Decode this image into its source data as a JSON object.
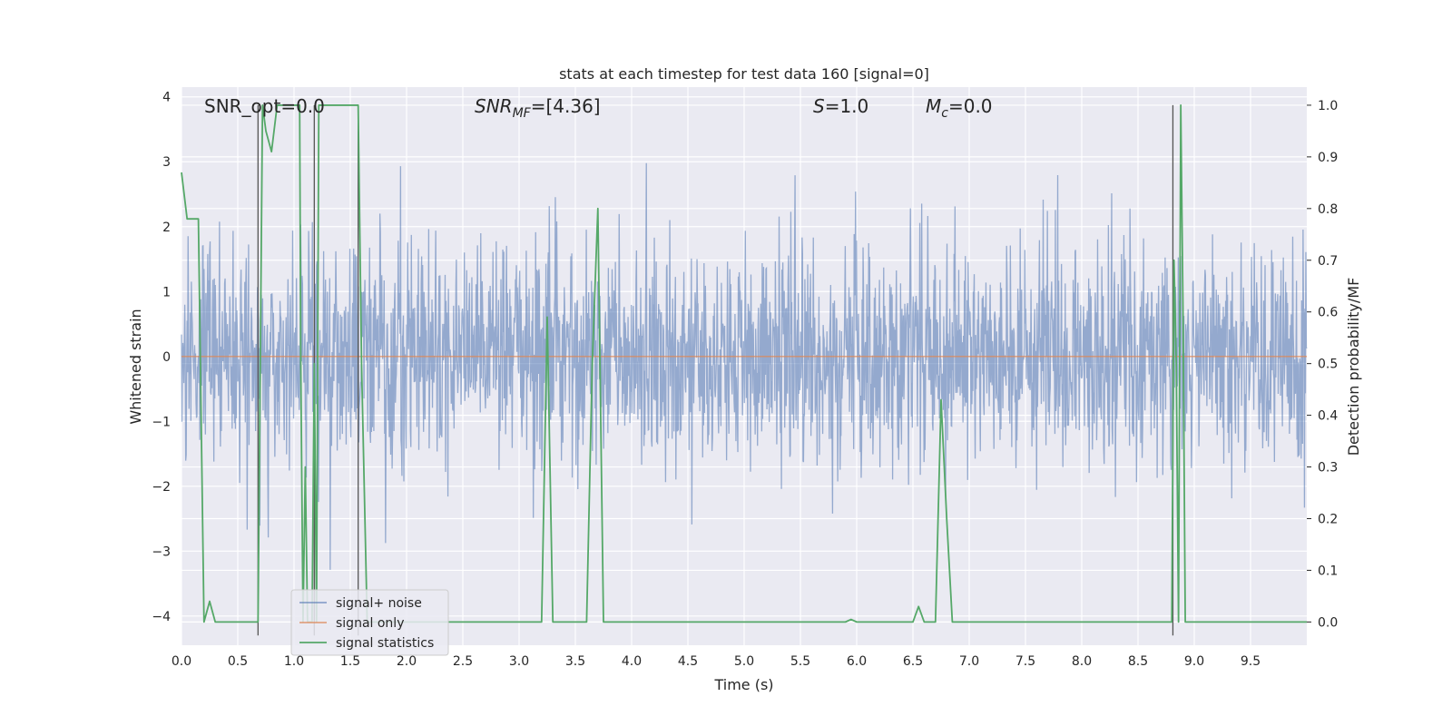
{
  "chart_data": {
    "type": "line",
    "title": "stats at each timestep for test data 160 [signal=0]",
    "xlabel": "Time (s)",
    "ylabel": "Whitened strain",
    "y2label": "Detection probability/MF",
    "xlim": [
      0.0,
      10.0
    ],
    "ylim": [
      -4.45,
      4.15
    ],
    "y2lim": [
      -0.045,
      1.035
    ],
    "x_ticks": [
      "0.0",
      "0.5",
      "1.0",
      "1.5",
      "2.0",
      "2.5",
      "3.0",
      "3.5",
      "4.0",
      "4.5",
      "5.0",
      "5.5",
      "6.0",
      "6.5",
      "7.0",
      "7.5",
      "8.0",
      "8.5",
      "9.0",
      "9.5"
    ],
    "y_ticks": [
      "4",
      "3",
      "2",
      "1",
      "0",
      "−1",
      "−2",
      "−3",
      "−4"
    ],
    "y2_ticks": [
      "1.0",
      "0.9",
      "0.8",
      "0.7",
      "0.6",
      "0.5",
      "0.4",
      "0.3",
      "0.2",
      "0.1",
      "0.0"
    ],
    "grid": true,
    "legend_position": "lower-left",
    "annotations": {
      "snr_opt": "SNR_opt=0.0",
      "snr_mf_sym": "SNR",
      "snr_mf_sub": "MF",
      "snr_mf_val": "=[4.36]",
      "s_sym": "S",
      "s_val": "=1.0",
      "mc_sym": "M",
      "mc_sub": "c",
      "mc_val": "=0.0"
    },
    "series": [
      {
        "name": "signal+ noise",
        "color": "#4c72b0",
        "style": "gaussian-noise",
        "std": 0.85,
        "n_samples": 2400
      },
      {
        "name": "signal only",
        "color": "#dd8452",
        "y": 0.0
      },
      {
        "name": "signal statistics",
        "color": "#55a868",
        "axis": "right",
        "x": [
          0.0,
          0.05,
          0.1,
          0.15,
          0.2,
          0.25,
          0.3,
          0.35,
          0.4,
          0.45,
          0.5,
          0.55,
          0.6,
          0.65,
          0.68,
          0.7,
          0.72,
          0.75,
          0.8,
          0.85,
          0.88,
          0.9,
          0.95,
          1.0,
          1.05,
          1.06,
          1.08,
          1.1,
          1.12,
          1.14,
          1.16,
          1.18,
          1.2,
          1.22,
          1.25,
          1.3,
          1.35,
          1.4,
          1.45,
          1.5,
          1.55,
          1.57,
          1.6,
          1.65,
          1.7,
          1.75,
          1.8,
          2.0,
          2.5,
          3.0,
          3.2,
          3.25,
          3.3,
          3.35,
          3.6,
          3.65,
          3.7,
          3.75,
          3.8,
          4.0,
          5.0,
          5.8,
          5.9,
          5.95,
          6.0,
          6.5,
          6.55,
          6.6,
          6.65,
          6.7,
          6.75,
          6.8,
          6.85,
          6.9,
          7.0,
          8.0,
          8.79,
          8.8,
          8.82,
          8.84,
          8.86,
          8.88,
          8.9,
          8.92,
          8.95,
          9.0,
          9.5,
          10.0
        ],
        "values": [
          0.87,
          0.78,
          0.78,
          0.78,
          0.0,
          0.04,
          0.0,
          0.0,
          0.0,
          0.0,
          0.0,
          0.0,
          0.0,
          0.0,
          0.0,
          0.5,
          1.0,
          0.95,
          0.91,
          1.0,
          1.0,
          1.0,
          1.0,
          1.0,
          1.0,
          0.5,
          0.0,
          0.3,
          0.0,
          0.0,
          0.0,
          0.5,
          0.0,
          1.0,
          1.0,
          1.0,
          1.0,
          1.0,
          1.0,
          1.0,
          1.0,
          1.0,
          0.5,
          0.0,
          0.0,
          0.0,
          0.0,
          0.0,
          0.0,
          0.0,
          0.0,
          0.59,
          0.0,
          0.0,
          0.0,
          0.5,
          0.8,
          0.0,
          0.0,
          0.0,
          0.0,
          0.0,
          0.0,
          0.005,
          0.0,
          0.0,
          0.03,
          0.0,
          0.0,
          0.0,
          0.43,
          0.2,
          0.0,
          0.0,
          0.0,
          0.0,
          0.0,
          0.0,
          0.7,
          0.5,
          0.0,
          1.0,
          0.6,
          0.0,
          0.0,
          0.0,
          0.0,
          0.0
        ]
      }
    ],
    "vertical_markers": [
      {
        "x": 0.68,
        "color": "#555555",
        "top": 1.0
      },
      {
        "x": 1.18,
        "color": "#555555",
        "top": 1.0
      },
      {
        "x": 1.57,
        "color": "#555555",
        "top": 1.0
      },
      {
        "x": 8.81,
        "color": "#555555",
        "top": 1.0
      }
    ]
  }
}
